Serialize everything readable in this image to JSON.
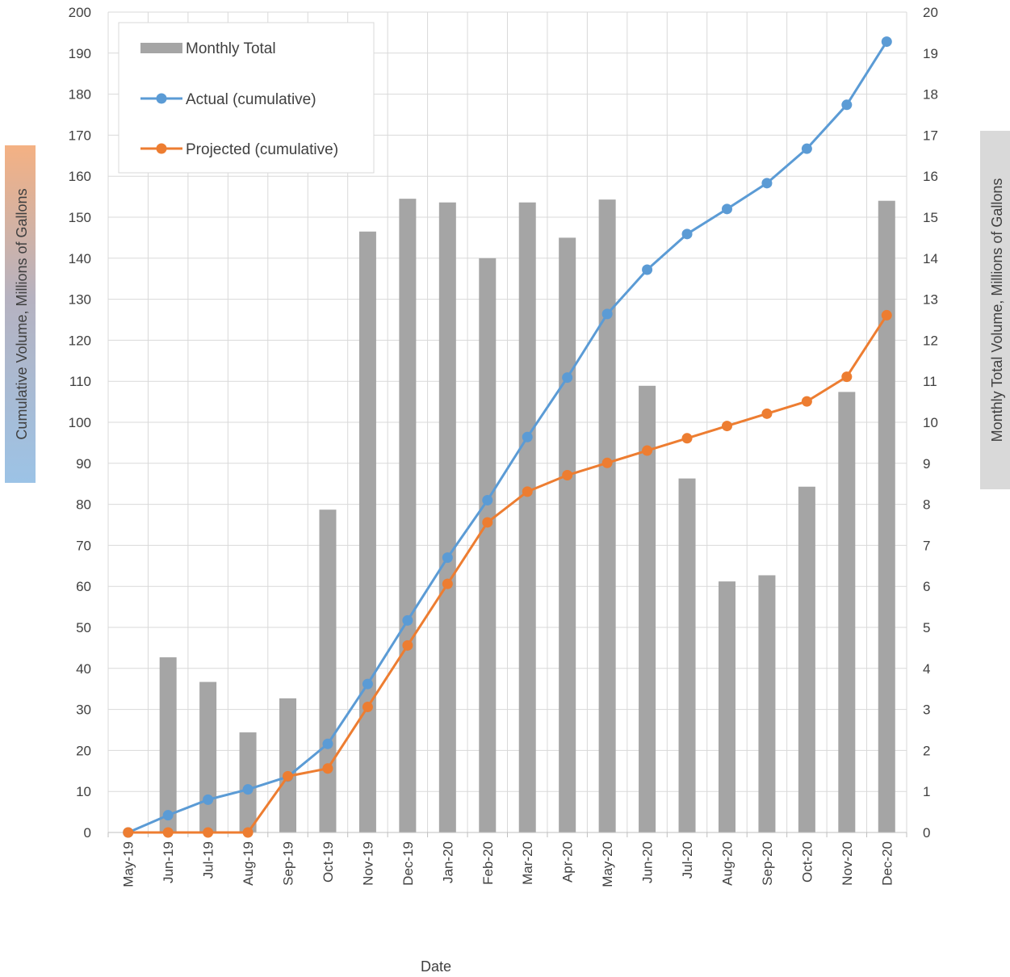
{
  "chart_data": {
    "type": "bar+line",
    "title": "",
    "xlabel": "Date",
    "ylabel_left": "Cumulative Volume, Millions of Gallons",
    "ylabel_right": "Monthly Total Volume, Millions of Gallons",
    "ylim_left": [
      0,
      200
    ],
    "ylim_right": [
      0,
      20
    ],
    "yticks_left": [
      0,
      10,
      20,
      30,
      40,
      50,
      60,
      70,
      80,
      90,
      100,
      110,
      120,
      130,
      140,
      150,
      160,
      170,
      180,
      190,
      200
    ],
    "yticks_right": [
      0,
      1,
      2,
      3,
      4,
      5,
      6,
      7,
      8,
      9,
      10,
      11,
      12,
      13,
      14,
      15,
      16,
      17,
      18,
      19,
      20
    ],
    "grid": true,
    "legend_position": "top-left",
    "categories": [
      "May-19",
      "Jun-19",
      "Jul-19",
      "Aug-19",
      "Sep-19",
      "Oct-19",
      "Nov-19",
      "Dec-19",
      "Jan-20",
      "Feb-20",
      "Mar-20",
      "Apr-20",
      "May-20",
      "Jun-20",
      "Jul-20",
      "Aug-20",
      "Sep-20",
      "Oct-20",
      "Nov-20",
      "Dec-20"
    ],
    "series": [
      {
        "name": "Monthly Total",
        "type": "bar",
        "axis": "right",
        "color": "#a5a5a5",
        "values": [
          0,
          4.27,
          3.67,
          2.44,
          3.27,
          7.87,
          14.65,
          15.45,
          15.36,
          14.0,
          15.36,
          14.5,
          15.43,
          10.89,
          8.63,
          6.12,
          6.27,
          8.43,
          10.74,
          15.4
        ]
      },
      {
        "name": "Actual (cumulative)",
        "type": "line",
        "axis": "left",
        "color": "#5b9bd5",
        "values": [
          0,
          4.2,
          8.0,
          10.5,
          13.6,
          21.6,
          36.2,
          51.7,
          67.0,
          81.0,
          96.4,
          110.9,
          126.4,
          137.2,
          145.9,
          152.0,
          158.3,
          166.7,
          177.4,
          192.8
        ]
      },
      {
        "name": "Projected (cumulative)",
        "type": "line",
        "axis": "left",
        "color": "#ed7d31",
        "values": [
          0,
          0,
          0,
          0,
          13.7,
          15.6,
          30.6,
          45.6,
          60.6,
          75.6,
          83.1,
          87.1,
          90.1,
          93.1,
          96.1,
          99.1,
          102.1,
          105.1,
          111.1,
          126.1
        ]
      }
    ]
  }
}
